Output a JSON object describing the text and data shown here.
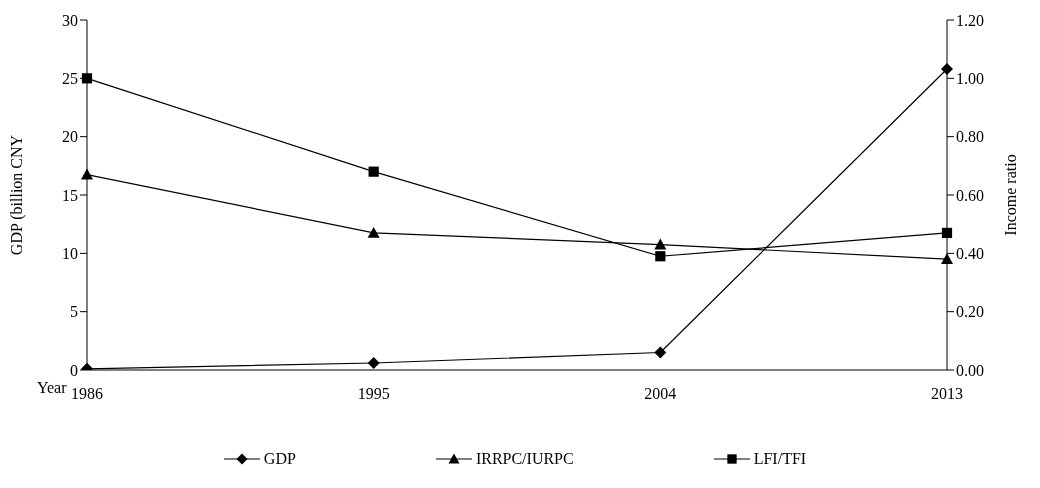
{
  "chart_data": {
    "type": "line",
    "xlabel": "Year",
    "ylabel": "GDP (billion CNY",
    "y2label": "Income ratio",
    "categories": [
      "1986",
      "1995",
      "2004",
      "2013"
    ],
    "series": [
      {
        "name": "GDP",
        "color": "#000000",
        "values": [
          0.1,
          0.6,
          1.5,
          25.8
        ],
        "marker": "diamond"
      },
      {
        "name": "IRRPC/IURPC",
        "color": "#000000",
        "values": [
          0.67,
          0.47,
          0.43,
          0.38
        ],
        "marker": "triangle",
        "axis": "y2"
      },
      {
        "name": "LFI/TFI",
        "color": "#000000",
        "values": [
          1.0,
          0.68,
          0.39,
          0.47
        ],
        "marker": "square",
        "axis": "y2"
      }
    ],
    "ylim": [
      0,
      30
    ],
    "yticks": [
      0,
      5,
      10,
      15,
      20,
      25,
      30
    ],
    "y2lim": [
      0,
      1.2
    ],
    "y2ticks": [
      {
        "value": 0,
        "label": "0.00"
      },
      {
        "value": 0.2,
        "label": "0.20"
      },
      {
        "value": 0.4,
        "label": "0.40"
      },
      {
        "value": 0.6,
        "label": "0.60"
      },
      {
        "value": 0.8,
        "label": "0.80"
      },
      {
        "value": 1.0,
        "label": "1.00"
      },
      {
        "value": 1.2,
        "label": "1.20"
      }
    ],
    "grid": false,
    "legend": "bottom",
    "line_style": "solid"
  }
}
